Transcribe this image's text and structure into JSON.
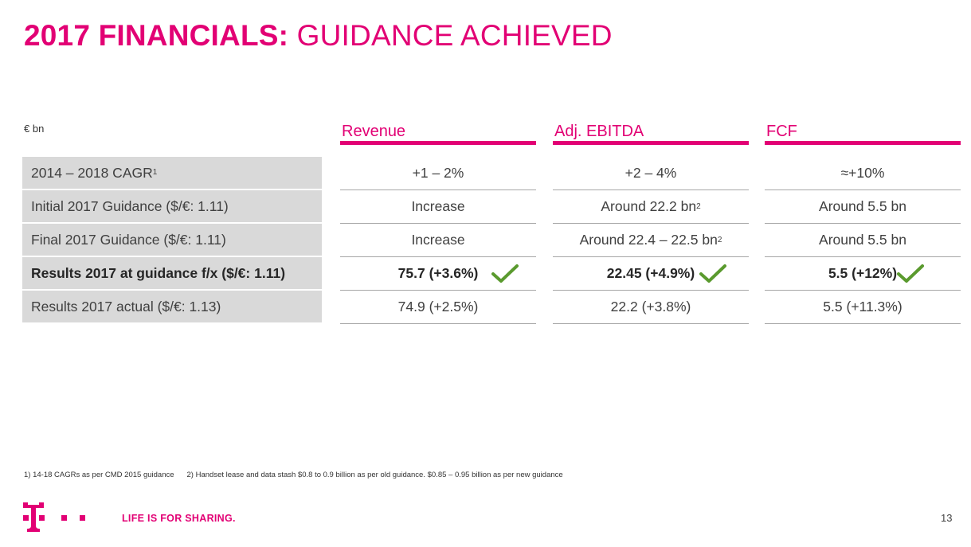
{
  "title": {
    "bold": "2017 FINANCIALS:",
    "light": "GUIDANCE ACHIEVED"
  },
  "unit": "€ bn",
  "rows": [
    {
      "label": "2014 – 2018 CAGR",
      "sup": "1"
    },
    {
      "label": "Initial 2017 Guidance ($/€: 1.11)",
      "sup": ""
    },
    {
      "label": "Final 2017 Guidance ($/€: 1.11)",
      "sup": ""
    },
    {
      "label": "Results 2017 at guidance f/x ($/€: 1.11)",
      "sup": ""
    },
    {
      "label": "Results 2017 actual ($/€: 1.13)",
      "sup": ""
    }
  ],
  "columns": [
    {
      "header": "Revenue",
      "cells": [
        {
          "value": "+1 – 2%",
          "sup": ""
        },
        {
          "value": "Increase",
          "sup": ""
        },
        {
          "value": "Increase",
          "sup": ""
        },
        {
          "value": "75.7 (+3.6%)",
          "sup": ""
        },
        {
          "value": "74.9 (+2.5%)",
          "sup": ""
        }
      ]
    },
    {
      "header": "Adj. EBITDA",
      "cells": [
        {
          "value": "+2 – 4%",
          "sup": ""
        },
        {
          "value": "Around 22.2 bn",
          "sup": "2"
        },
        {
          "value": "Around 22.4 – 22.5 bn",
          "sup": "2"
        },
        {
          "value": "22.45 (+4.9%)",
          "sup": ""
        },
        {
          "value": "22.2 (+3.8%)",
          "sup": ""
        }
      ]
    },
    {
      "header": "FCF",
      "cells": [
        {
          "value": "≈+10%",
          "sup": ""
        },
        {
          "value": "Around 5.5 bn",
          "sup": ""
        },
        {
          "value": "Around 5.5 bn",
          "sup": ""
        },
        {
          "value": "5.5 (+12%)",
          "sup": ""
        },
        {
          "value": "5.5 (+11.3%)",
          "sup": ""
        }
      ]
    }
  ],
  "icons": {
    "check": "checkmark-icon",
    "logo": "telekom-t-logo"
  },
  "colors": {
    "brand": "#e20074",
    "check": "#5a9a2e",
    "label_bg": "#d9d9d9"
  },
  "footnotes": [
    "1) 14-18 CAGRs as per CMD 2015 guidance",
    "2) Handset lease and data stash $0.8 to 0.9 billion as per old guidance. $0.85 – 0.95 billion as per new guidance"
  ],
  "slogan": "LIFE IS FOR SHARING.",
  "page_number": "13"
}
